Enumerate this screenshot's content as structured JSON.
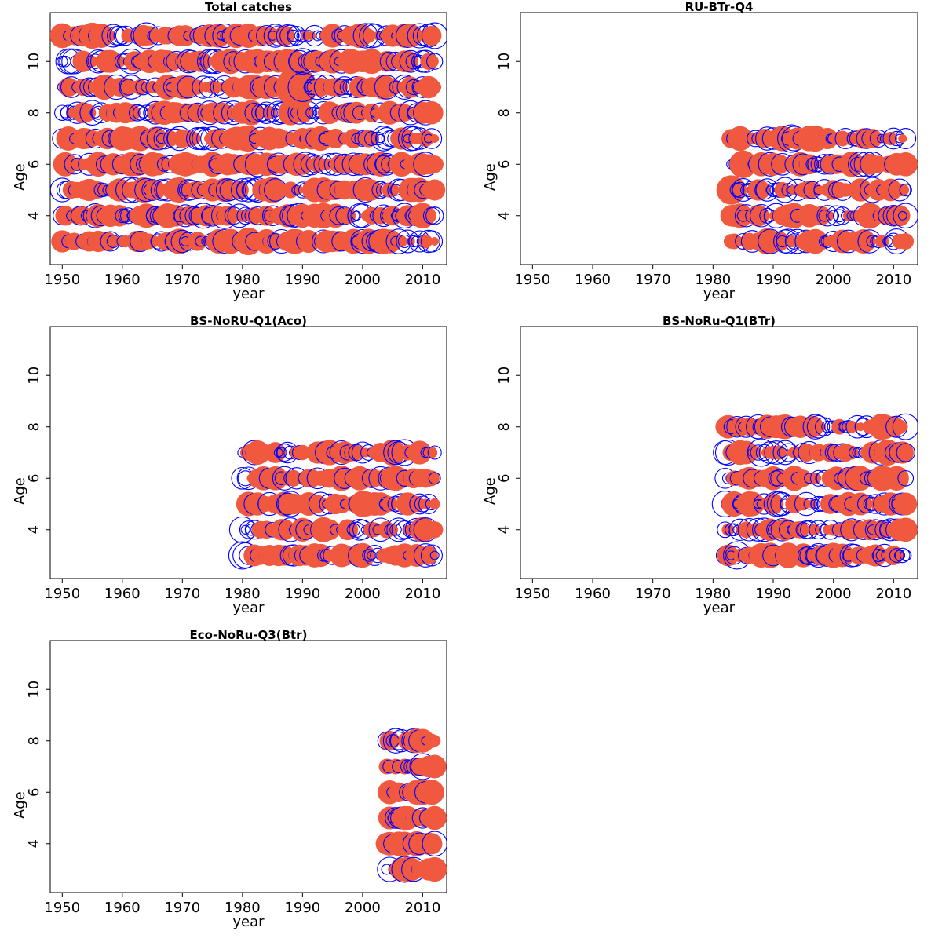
{
  "figure": {
    "marker_colors": {
      "positive": "#f0593f",
      "negative": "#0000ff"
    }
  },
  "chart_data": [
    {
      "type": "scatter",
      "subtype": "bubble",
      "title": "Total catches",
      "xlabel": "year",
      "ylabel": "Age",
      "xlim": [
        1948,
        2014
      ],
      "ylim": [
        2.1,
        11.9
      ],
      "xticks": [
        1950,
        1960,
        1970,
        1980,
        1990,
        2000,
        2010
      ],
      "yticks": [
        4,
        6,
        8,
        10
      ],
      "x_range": [
        1950,
        2012
      ],
      "ages": [
        3,
        4,
        5,
        6,
        7,
        8,
        9,
        10,
        11
      ],
      "highlights": [
        {
          "year": 1989,
          "age": 9,
          "size": 1.0,
          "sign": "positive"
        },
        {
          "year": 1990,
          "age": 9,
          "size": 0.5,
          "sign": "negative"
        },
        {
          "year": 1990,
          "age": 10,
          "size": 0.4,
          "sign": "negative"
        },
        {
          "year": 1981,
          "age": 3,
          "size": 0.45,
          "sign": "positive"
        },
        {
          "year": 1977,
          "age": 4,
          "size": 0.4,
          "sign": "negative"
        },
        {
          "year": 1985,
          "age": 5,
          "size": 0.4,
          "sign": "positive"
        },
        {
          "year": 2012,
          "age": 11,
          "size": 0.4,
          "sign": "negative"
        },
        {
          "year": 1955,
          "age": 11,
          "size": 0.4,
          "sign": "positive"
        },
        {
          "year": 1964,
          "age": 11,
          "size": 0.4,
          "sign": "negative"
        },
        {
          "year": 1981,
          "age": 7,
          "size": 0.4,
          "sign": "positive"
        }
      ]
    },
    {
      "type": "scatter",
      "subtype": "bubble",
      "title": "RU-BTr-Q4",
      "xlabel": "year",
      "ylabel": "Age",
      "xlim": [
        1948,
        2014
      ],
      "ylim": [
        2.1,
        11.9
      ],
      "xticks": [
        1950,
        1960,
        1970,
        1980,
        1990,
        2000,
        2010
      ],
      "yticks": [
        4,
        6,
        8,
        10
      ],
      "x_range": [
        1983,
        2012
      ],
      "ages": [
        3,
        4,
        5,
        6,
        7
      ],
      "highlights": [
        {
          "year": 1983,
          "age": 5,
          "size": 0.5,
          "sign": "positive"
        },
        {
          "year": 1985,
          "age": 6,
          "size": 0.45,
          "sign": "positive"
        },
        {
          "year": 1993,
          "age": 7,
          "size": 0.45,
          "sign": "negative"
        },
        {
          "year": 1997,
          "age": 7,
          "size": 0.4,
          "sign": "positive"
        },
        {
          "year": 2006,
          "age": 4,
          "size": 0.4,
          "sign": "positive"
        },
        {
          "year": 1989,
          "age": 3,
          "size": 0.4,
          "sign": "positive"
        }
      ]
    },
    {
      "type": "scatter",
      "subtype": "bubble",
      "title": "BS-NoRU-Q1(Aco)",
      "xlabel": "year",
      "ylabel": "Age",
      "xlim": [
        1948,
        2014
      ],
      "ylim": [
        2.1,
        11.9
      ],
      "xticks": [
        1950,
        1960,
        1970,
        1980,
        1990,
        2000,
        2010
      ],
      "yticks": [
        4,
        6,
        8,
        10
      ],
      "x_range": [
        1980,
        2012
      ],
      "ages": [
        3,
        4,
        5,
        6,
        7
      ],
      "highlights": [
        {
          "year": 1980,
          "age": 3,
          "size": 0.45,
          "sign": "negative"
        },
        {
          "year": 1980,
          "age": 4,
          "size": 0.4,
          "sign": "negative"
        },
        {
          "year": 2000,
          "age": 5,
          "size": 0.4,
          "sign": "positive"
        },
        {
          "year": 1987,
          "age": 5,
          "size": 0.35,
          "sign": "positive"
        },
        {
          "year": 2005,
          "age": 7,
          "size": 0.4,
          "sign": "positive"
        },
        {
          "year": 2007,
          "age": 7,
          "size": 0.4,
          "sign": "negative"
        },
        {
          "year": 1982,
          "age": 7,
          "size": 0.35,
          "sign": "negative"
        }
      ]
    },
    {
      "type": "scatter",
      "subtype": "bubble",
      "title": "BS-NoRu-Q1(BTr)",
      "xlabel": "year",
      "ylabel": "Age",
      "xlim": [
        1948,
        2014
      ],
      "ylim": [
        2.1,
        11.9
      ],
      "xticks": [
        1950,
        1960,
        1970,
        1980,
        1990,
        2000,
        2010
      ],
      "yticks": [
        4,
        6,
        8,
        10
      ],
      "x_range": [
        1982,
        2012
      ],
      "ages": [
        3,
        4,
        5,
        6,
        7,
        8
      ],
      "highlights": [
        {
          "year": 1988,
          "age": 7,
          "size": 0.45,
          "sign": "negative"
        },
        {
          "year": 1984,
          "age": 3,
          "size": 0.45,
          "sign": "negative"
        },
        {
          "year": 1982,
          "age": 5,
          "size": 0.4,
          "sign": "negative"
        },
        {
          "year": 2008,
          "age": 8,
          "size": 0.4,
          "sign": "positive"
        },
        {
          "year": 2012,
          "age": 8,
          "size": 0.4,
          "sign": "negative"
        },
        {
          "year": 2009,
          "age": 7,
          "size": 0.4,
          "sign": "positive"
        }
      ]
    },
    {
      "type": "scatter",
      "subtype": "bubble",
      "title": "Eco-NoRu-Q3(Btr)",
      "xlabel": "year",
      "ylabel": "Age",
      "xlim": [
        1948,
        2014
      ],
      "ylim": [
        2.1,
        11.9
      ],
      "xticks": [
        1950,
        1960,
        1970,
        1980,
        1990,
        2000,
        2010
      ],
      "yticks": [
        4,
        6,
        8,
        10
      ],
      "x_range": [
        2004,
        2012
      ],
      "ages": [
        3,
        4,
        5,
        6,
        7,
        8
      ],
      "highlights": [
        {
          "year": 2010,
          "age": 7,
          "size": 0.4,
          "sign": "negative"
        },
        {
          "year": 2012,
          "age": 3,
          "size": 0.35,
          "sign": "positive"
        },
        {
          "year": 2007,
          "age": 3,
          "size": 0.4,
          "sign": "negative"
        },
        {
          "year": 2009,
          "age": 8,
          "size": 0.35,
          "sign": "positive"
        }
      ]
    }
  ]
}
